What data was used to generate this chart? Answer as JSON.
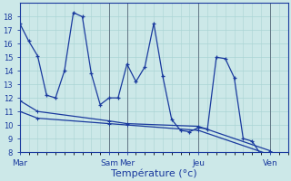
{
  "xlabel": "Température (°c)",
  "bg_color": "#cce8e8",
  "grid_color": "#aad4d4",
  "line_color": "#1a3a9e",
  "ylim": [
    8,
    19
  ],
  "yticks": [
    8,
    9,
    10,
    11,
    12,
    13,
    14,
    15,
    16,
    17,
    18
  ],
  "day_labels": [
    "Mar",
    "Sam",
    "Mer",
    "Jeu",
    "Ven"
  ],
  "day_x": [
    0,
    60,
    72,
    120,
    168
  ],
  "total_hours": 180,
  "series1": [
    [
      0,
      17.5
    ],
    [
      6,
      16.2
    ],
    [
      12,
      15.1
    ],
    [
      18,
      12.2
    ],
    [
      24,
      12.0
    ],
    [
      30,
      14.0
    ],
    [
      36,
      18.3
    ],
    [
      42,
      18.0
    ],
    [
      48,
      13.8
    ],
    [
      54,
      11.5
    ],
    [
      60,
      12.0
    ],
    [
      66,
      12.0
    ],
    [
      72,
      14.5
    ],
    [
      78,
      13.2
    ],
    [
      84,
      14.3
    ],
    [
      90,
      17.5
    ],
    [
      96,
      13.6
    ],
    [
      102,
      10.4
    ],
    [
      108,
      9.6
    ],
    [
      114,
      9.5
    ],
    [
      120,
      9.8
    ],
    [
      126,
      9.7
    ],
    [
      132,
      15.0
    ],
    [
      138,
      14.9
    ],
    [
      144,
      13.5
    ],
    [
      150,
      9.0
    ],
    [
      156,
      8.8
    ],
    [
      162,
      7.8
    ]
  ],
  "series2": [
    [
      0,
      11.8
    ],
    [
      12,
      11.0
    ],
    [
      60,
      10.3
    ],
    [
      72,
      10.1
    ],
    [
      120,
      9.9
    ],
    [
      168,
      8.1
    ]
  ],
  "series3": [
    [
      0,
      11.0
    ],
    [
      12,
      10.5
    ],
    [
      60,
      10.1
    ],
    [
      72,
      10.0
    ],
    [
      120,
      9.6
    ],
    [
      168,
      7.8
    ]
  ],
  "vline_positions": [
    0,
    60,
    72,
    120,
    168
  ],
  "vline_color": "#556677",
  "tick_color": "#1a3a9e",
  "xlabel_fontsize": 8,
  "ytick_fontsize": 6,
  "xtick_fontsize": 6.5,
  "lw": 0.9,
  "marker_size": 3.5
}
